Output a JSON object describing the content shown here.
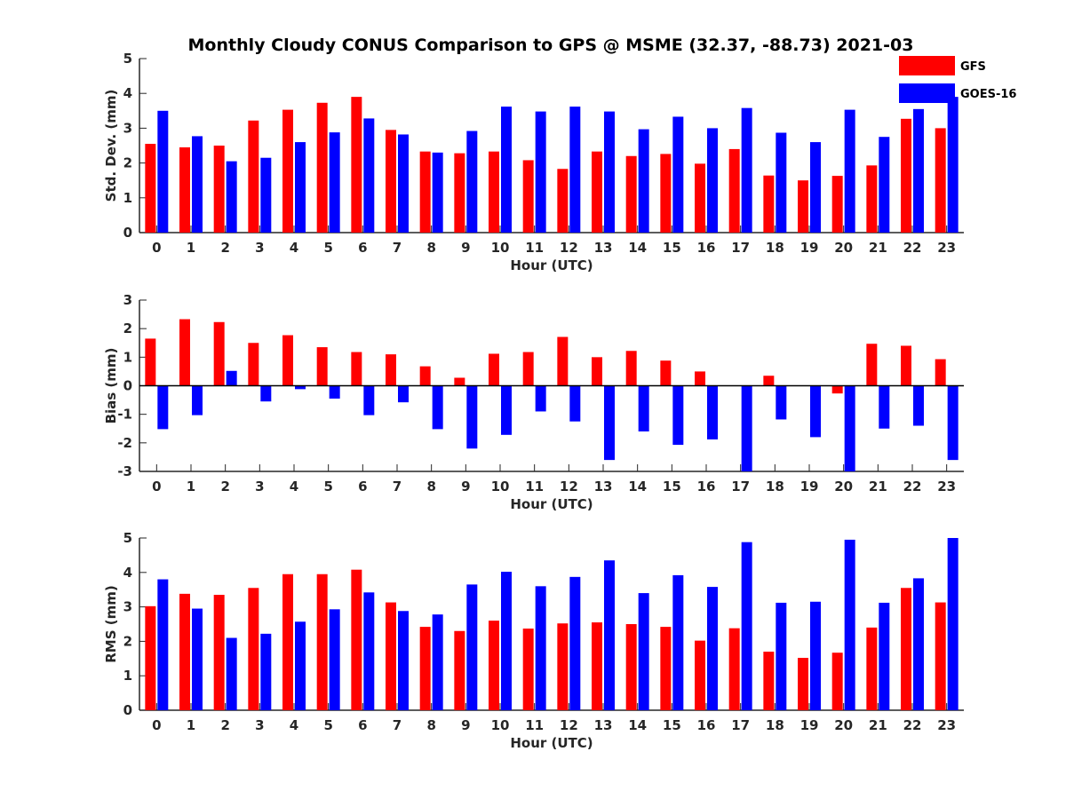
{
  "figure": {
    "title": "Monthly Cloudy CONUS Comparison to GPS @ MSME (32.37, -88.73) 2021-03"
  },
  "legend": {
    "placement": "top-right",
    "items": [
      {
        "label": "GFS",
        "color": "#ff0000"
      },
      {
        "label": "GOES-16",
        "color": "#0000ff"
      }
    ]
  },
  "chart_data": [
    {
      "type": "bar",
      "xlabel": "Hour (UTC)",
      "ylabel": "Std. Dev. (mm)",
      "ylim": [
        0,
        5
      ],
      "yticks": [
        0,
        1,
        2,
        3,
        4,
        5
      ],
      "categories": [
        "0",
        "1",
        "2",
        "3",
        "4",
        "5",
        "6",
        "7",
        "8",
        "9",
        "10",
        "11",
        "12",
        "13",
        "14",
        "15",
        "16",
        "17",
        "18",
        "19",
        "20",
        "21",
        "22",
        "23"
      ],
      "series": [
        {
          "name": "GFS",
          "color": "#ff0000",
          "values": [
            2.55,
            2.45,
            2.5,
            3.22,
            3.53,
            3.73,
            3.9,
            2.95,
            2.33,
            2.28,
            2.33,
            2.08,
            1.83,
            2.33,
            2.2,
            2.26,
            1.98,
            2.4,
            1.64,
            1.5,
            1.63,
            1.93,
            3.27,
            3.0
          ]
        },
        {
          "name": "GOES-16",
          "color": "#0000ff",
          "values": [
            3.5,
            2.77,
            2.05,
            2.15,
            2.6,
            2.88,
            3.28,
            2.82,
            2.3,
            2.92,
            3.62,
            3.48,
            3.62,
            3.48,
            2.97,
            3.33,
            3.0,
            3.58,
            2.87,
            2.6,
            3.53,
            2.75,
            3.55,
            3.9
          ]
        }
      ]
    },
    {
      "type": "bar",
      "xlabel": "Hour (UTC)",
      "ylabel": "Bias (mm)",
      "ylim": [
        -3,
        3
      ],
      "yticks": [
        -3,
        -2,
        -1,
        0,
        1,
        2,
        3
      ],
      "categories": [
        "0",
        "1",
        "2",
        "3",
        "4",
        "5",
        "6",
        "7",
        "8",
        "9",
        "10",
        "11",
        "12",
        "13",
        "14",
        "15",
        "16",
        "17",
        "18",
        "19",
        "20",
        "21",
        "22",
        "23"
      ],
      "series": [
        {
          "name": "GFS",
          "color": "#ff0000",
          "values": [
            1.65,
            2.33,
            2.23,
            1.5,
            1.77,
            1.35,
            1.18,
            1.1,
            0.68,
            0.28,
            1.12,
            1.18,
            1.71,
            1.0,
            1.22,
            0.88,
            0.5,
            0.0,
            0.35,
            0.0,
            -0.27,
            1.47,
            1.4,
            0.93
          ]
        },
        {
          "name": "GOES-16",
          "color": "#0000ff",
          "values": [
            -1.52,
            -1.03,
            0.52,
            -0.55,
            -0.12,
            -0.45,
            -1.03,
            -0.58,
            -1.52,
            -2.2,
            -1.72,
            -0.9,
            -1.25,
            -2.6,
            -1.6,
            -2.07,
            -1.88,
            -3.0,
            -1.18,
            -1.8,
            -3.0,
            -1.5,
            -1.4,
            -2.6
          ]
        }
      ]
    },
    {
      "type": "bar",
      "xlabel": "Hour (UTC)",
      "ylabel": "RMS (mm)",
      "ylim": [
        0,
        5
      ],
      "yticks": [
        0,
        1,
        2,
        3,
        4,
        5
      ],
      "categories": [
        "0",
        "1",
        "2",
        "3",
        "4",
        "5",
        "6",
        "7",
        "8",
        "9",
        "10",
        "11",
        "12",
        "13",
        "14",
        "15",
        "16",
        "17",
        "18",
        "19",
        "20",
        "21",
        "22",
        "23"
      ],
      "series": [
        {
          "name": "GFS",
          "color": "#ff0000",
          "values": [
            3.02,
            3.38,
            3.35,
            3.55,
            3.95,
            3.95,
            4.08,
            3.13,
            2.42,
            2.3,
            2.6,
            2.37,
            2.52,
            2.55,
            2.5,
            2.42,
            2.02,
            2.38,
            1.7,
            1.52,
            1.67,
            2.4,
            3.55,
            3.13
          ]
        },
        {
          "name": "GOES-16",
          "color": "#0000ff",
          "values": [
            3.8,
            2.95,
            2.1,
            2.22,
            2.57,
            2.93,
            3.42,
            2.88,
            2.78,
            3.65,
            4.02,
            3.6,
            3.87,
            4.35,
            3.4,
            3.92,
            3.58,
            4.88,
            3.12,
            3.15,
            4.95,
            3.12,
            3.83,
            5.0
          ]
        }
      ]
    }
  ]
}
